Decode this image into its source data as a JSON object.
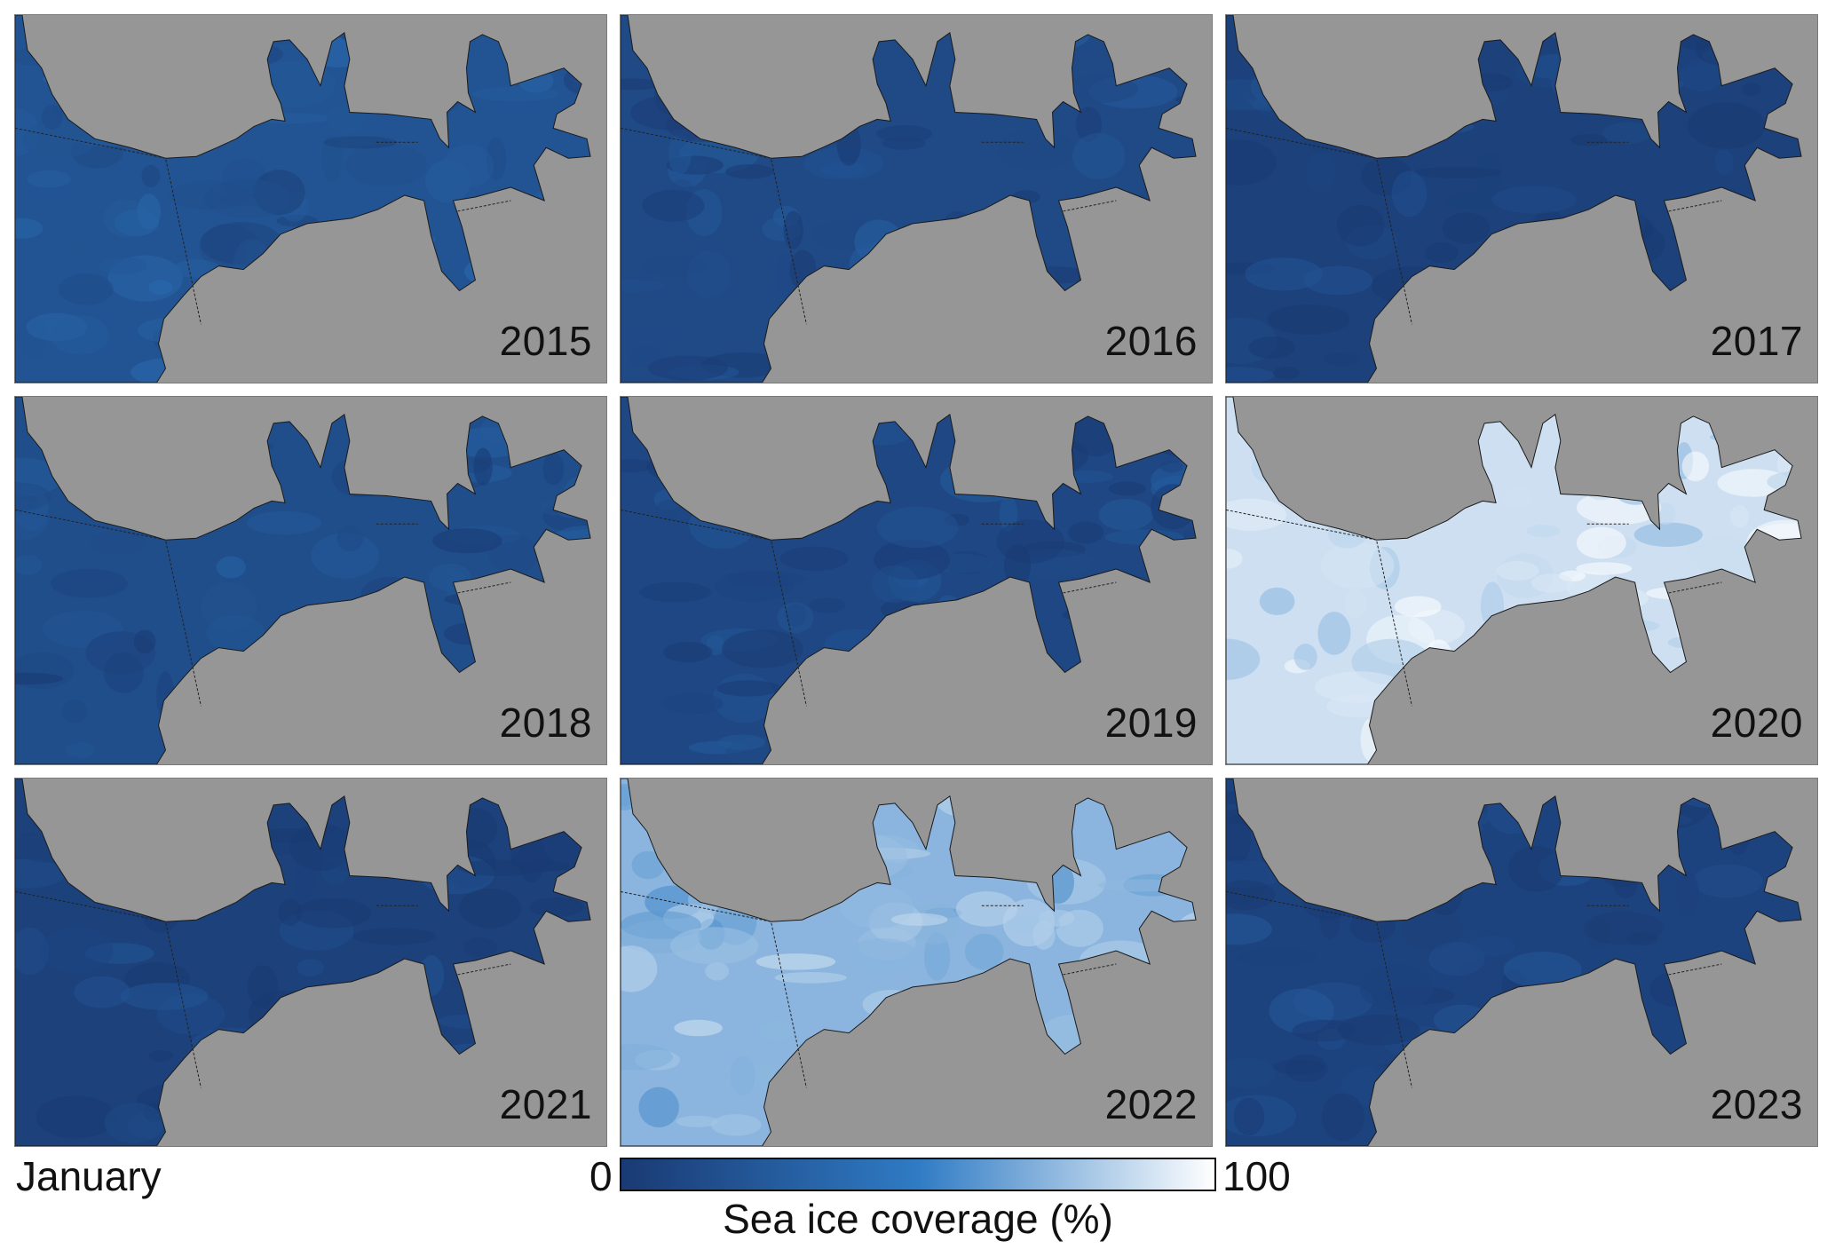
{
  "panels": [
    {
      "year": "2015",
      "coverage": 0.2
    },
    {
      "year": "2016",
      "coverage": 0.12
    },
    {
      "year": "2017",
      "coverage": 0.05
    },
    {
      "year": "2018",
      "coverage": 0.15
    },
    {
      "year": "2019",
      "coverage": 0.1
    },
    {
      "year": "2020",
      "coverage": 0.88
    },
    {
      "year": "2021",
      "coverage": 0.05
    },
    {
      "year": "2022",
      "coverage": 0.72
    },
    {
      "year": "2023",
      "coverage": 0.07
    }
  ],
  "footer": {
    "month": "January",
    "colorbar_min": "0",
    "colorbar_max": "100",
    "colorbar_label": "Sea ice coverage (%)"
  },
  "colors": {
    "land": "#969696",
    "scale_low": "#1a3a73",
    "scale_mid": "#2f7bc4",
    "scale_high": "#ffffff"
  }
}
